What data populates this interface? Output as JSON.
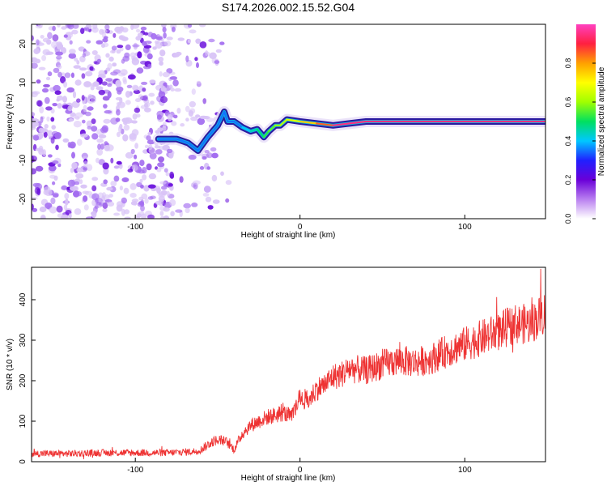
{
  "figure_title": "S174.2026.002.15.52.G04",
  "colors": {
    "red": "#ee3333",
    "axis": "#000000",
    "ridge": "#5a2a8a",
    "scatter": "#7733dd"
  },
  "chart_data": [
    {
      "type": "heatmap",
      "title": "S174.2026.002.15.52.G04",
      "xlabel": "Height of straight line (km)",
      "ylabel": "Frequency (Hz)",
      "xlim": [
        -163,
        149
      ],
      "ylim": [
        -25,
        25
      ],
      "xticks": [
        -100,
        0,
        100
      ],
      "yticks": [
        -20,
        -10,
        0,
        10,
        20
      ],
      "colorbar": {
        "label": "Normalized spectral amplitude",
        "range": [
          0,
          1
        ],
        "ticks": [
          0.0,
          0.2,
          0.4,
          0.6,
          0.8
        ],
        "colormap": [
          "#ffffff",
          "#b97ff0",
          "#6a00d8",
          "#2020ff",
          "#00c8ff",
          "#00e060",
          "#a0ff00",
          "#ffff00",
          "#ffa000",
          "#ff2040",
          "#ff40c0"
        ]
      },
      "ridge": {
        "x": [
          -86,
          -75,
          -68,
          -62,
          -56,
          -50,
          -46,
          -44,
          -40,
          -35,
          -30,
          -26,
          -22,
          -19,
          -15,
          -12,
          -8,
          0,
          10,
          20,
          30,
          40,
          60,
          80,
          100,
          120,
          149
        ],
        "y": [
          -4.5,
          -4.5,
          -5.5,
          -7.5,
          -4,
          -1,
          2.5,
          0,
          0,
          -1.5,
          -2.5,
          -2,
          -4,
          -2.5,
          -1,
          -1,
          0.5,
          0,
          -0.5,
          -1,
          -0.5,
          0,
          0,
          0,
          0,
          0,
          0
        ]
      }
    },
    {
      "type": "line",
      "xlabel": "Height of straight line (km)",
      "ylabel": "SNR (10 * v/v)",
      "xlim": [
        -163,
        149
      ],
      "ylim": [
        0,
        480
      ],
      "xticks": [
        -100,
        0,
        100
      ],
      "yticks": [
        0,
        100,
        200,
        300,
        400
      ],
      "series": [
        {
          "name": "SNR",
          "x": [
            -163,
            -140,
            -120,
            -100,
            -80,
            -65,
            -60,
            -55,
            -50,
            -45,
            -40,
            -35,
            -30,
            -25,
            -20,
            -15,
            -10,
            -5,
            0,
            5,
            10,
            15,
            20,
            25,
            30,
            40,
            50,
            60,
            70,
            80,
            90,
            100,
            110,
            120,
            130,
            140,
            149
          ],
          "values": [
            20,
            20,
            22,
            22,
            22,
            25,
            30,
            45,
            55,
            50,
            30,
            70,
            90,
            100,
            110,
            115,
            120,
            110,
            160,
            150,
            180,
            190,
            210,
            215,
            230,
            225,
            240,
            250,
            245,
            255,
            275,
            290,
            305,
            320,
            340,
            340,
            370
          ]
        }
      ]
    }
  ]
}
